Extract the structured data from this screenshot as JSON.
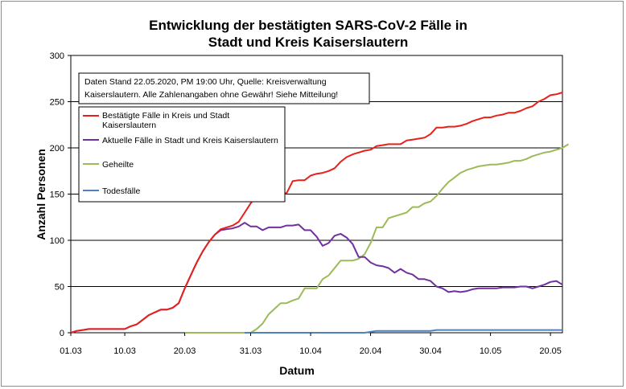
{
  "chart_data": {
    "type": "line",
    "title": [
      "Entwicklung der bestätigten SARS-CoV-2 Fälle in",
      "Stadt und Kreis Kaiserslautern"
    ],
    "xlabel": "Datum",
    "ylabel": "Anzahl Personen",
    "ylim": [
      0,
      300
    ],
    "y_ticks": [
      0,
      50,
      100,
      150,
      200,
      250,
      300
    ],
    "x_range_days": [
      0,
      82
    ],
    "x_ticks": [
      {
        "day": 0,
        "label": "01.03"
      },
      {
        "day": 9,
        "label": "10.03"
      },
      {
        "day": 19,
        "label": "20.03"
      },
      {
        "day": 30,
        "label": "31.03"
      },
      {
        "day": 40,
        "label": "10.04"
      },
      {
        "day": 50,
        "label": "20.04"
      },
      {
        "day": 60,
        "label": "30.04"
      },
      {
        "day": 70,
        "label": "10.05"
      },
      {
        "day": 80,
        "label": "20.05"
      }
    ],
    "grid": "horizontal",
    "annotation": [
      "Daten Stand 22.05.2020, PM 19:00 Uhr, Quelle: Kreisverwaltung",
      "Kaiserslautern. Alle Zahlenangaben ohne Gewähr! Siehe Mitteilung!"
    ],
    "legend_position": "top-left",
    "series": [
      {
        "name": "Bestätigte Fälle in Kreis und Stadt Kaiserslautern",
        "color": "#e8201a",
        "start_day": 0,
        "values": [
          0,
          2,
          3,
          4,
          4,
          4,
          4,
          4,
          4,
          4,
          7,
          9,
          14,
          19,
          22,
          25,
          25,
          27,
          32,
          48,
          62,
          76,
          88,
          98,
          106,
          112,
          114,
          116,
          120,
          130,
          140,
          148,
          150,
          150,
          150,
          151,
          151,
          164,
          165,
          165,
          170,
          172,
          173,
          175,
          178,
          185,
          190,
          193,
          195,
          197,
          198,
          202,
          203,
          204,
          204,
          204,
          208,
          209,
          210,
          211,
          215,
          222,
          222,
          223,
          223,
          224,
          226,
          229,
          231,
          233,
          233,
          235,
          236,
          238,
          238,
          240,
          243,
          245,
          250,
          253,
          257,
          258,
          260
        ]
      },
      {
        "name": "Aktuelle Fälle in Stadt und Kreis Kaiserslautern",
        "color": "#7030a0",
        "start_day": 0,
        "values": [
          0,
          2,
          3,
          4,
          4,
          4,
          4,
          4,
          4,
          4,
          7,
          9,
          14,
          19,
          22,
          25,
          25,
          27,
          32,
          48,
          62,
          76,
          88,
          98,
          106,
          111,
          112,
          113,
          115,
          119,
          115,
          115,
          111,
          114,
          114,
          114,
          116,
          116,
          117,
          111,
          111,
          104,
          94,
          97,
          105,
          107,
          103,
          96,
          82,
          82,
          76,
          73,
          72,
          70,
          65,
          69,
          65,
          63,
          58,
          58,
          56,
          50,
          48,
          44,
          45,
          44,
          45,
          47,
          48,
          48,
          48,
          48,
          49,
          49,
          49,
          50,
          50,
          48,
          50,
          52,
          55,
          56,
          52
        ]
      },
      {
        "name": "Geheilte",
        "color": "#9bbb59",
        "start_day": 19,
        "values": [
          0,
          0,
          0,
          0,
          0,
          0,
          0,
          0,
          0,
          0,
          0,
          0,
          4,
          10,
          20,
          26,
          32,
          32,
          35,
          37,
          48,
          48,
          48,
          58,
          62,
          70,
          78,
          78,
          78,
          80,
          85,
          97,
          114,
          114,
          124,
          126,
          128,
          130,
          136,
          136,
          140,
          142,
          148,
          156,
          163,
          168,
          173,
          176,
          178,
          180,
          181,
          182,
          182,
          183,
          184,
          186,
          186,
          188,
          191,
          193,
          195,
          196,
          198,
          200,
          204
        ]
      },
      {
        "name": "Todesfälle",
        "color": "#4f81bd",
        "start_day": 29,
        "values": [
          0,
          0,
          0,
          0,
          0,
          0,
          0,
          0,
          0,
          0,
          0,
          0,
          0,
          0,
          0,
          0,
          0,
          0,
          0,
          0,
          0,
          1,
          2,
          2,
          2,
          2,
          2,
          2,
          2,
          2,
          2,
          2,
          3,
          3,
          3,
          3,
          3,
          3,
          3,
          3,
          3,
          3,
          3,
          3,
          3,
          3,
          3,
          3,
          3,
          3,
          3,
          3,
          3,
          3
        ]
      }
    ]
  }
}
